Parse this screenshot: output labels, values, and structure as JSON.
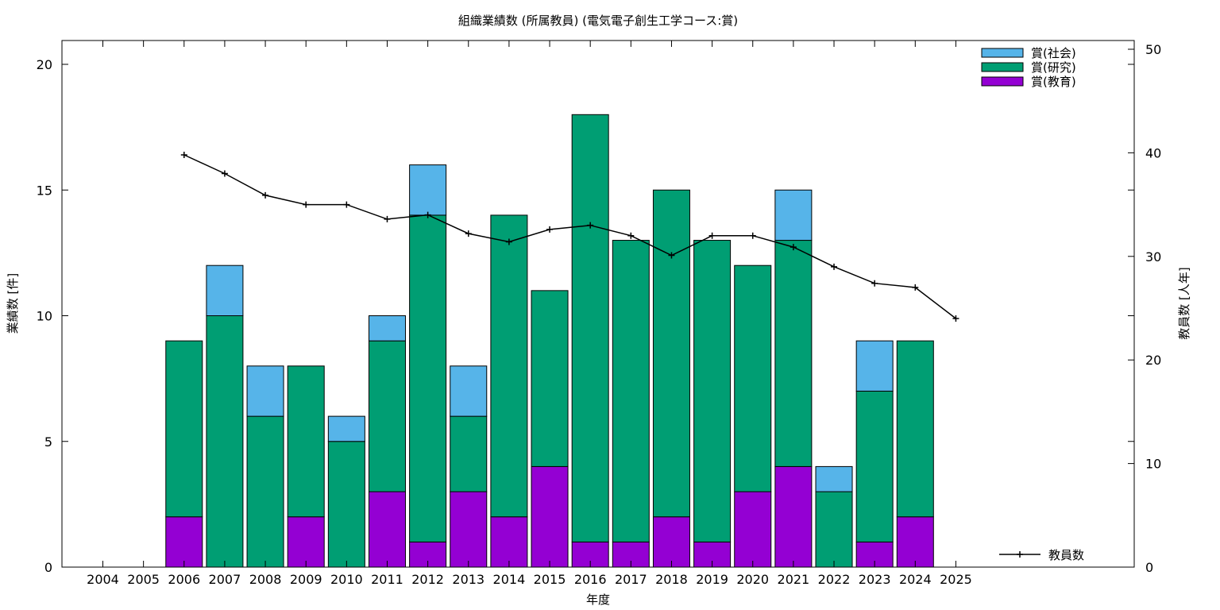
{
  "chart_data": {
    "type": "bar",
    "title": "組織業績数 (所属教員) (電気電子創生工学コース:賞)",
    "xlabel": "年度",
    "ylabel": "業績数 [件]",
    "y2label": "教員数 [人年]",
    "stacked": true,
    "categories": [
      "2004",
      "2005",
      "2006",
      "2007",
      "2008",
      "2009",
      "2010",
      "2011",
      "2012",
      "2013",
      "2014",
      "2015",
      "2016",
      "2017",
      "2018",
      "2019",
      "2020",
      "2021",
      "2022",
      "2023",
      "2024",
      "2025"
    ],
    "ylim": [
      0,
      20
    ],
    "yticks": [
      0,
      5,
      10,
      15,
      20
    ],
    "y2lim": [
      0,
      50
    ],
    "y2ticks": [
      0,
      10,
      20,
      30,
      40,
      50
    ],
    "series": [
      {
        "name": "賞(教育)",
        "color": "#9400d3",
        "axis": "left",
        "values": [
          0,
          0,
          2,
          0,
          0,
          2,
          0,
          3,
          1,
          3,
          2,
          4,
          1,
          1,
          2,
          1,
          3,
          4,
          0,
          1,
          2,
          0
        ]
      },
      {
        "name": "賞(研究)",
        "color": "#009e73",
        "axis": "left",
        "values": [
          0,
          0,
          7,
          10,
          6,
          6,
          5,
          6,
          13,
          3,
          12,
          7,
          17,
          12,
          13,
          12,
          9,
          9,
          3,
          6,
          7,
          0
        ]
      },
      {
        "name": "賞(社会)",
        "color": "#56b4e9",
        "axis": "left",
        "values": [
          0,
          0,
          0,
          2,
          2,
          0,
          1,
          1,
          2,
          2,
          0,
          0,
          0,
          0,
          0,
          0,
          0,
          2,
          1,
          2,
          0,
          0
        ]
      }
    ],
    "line_series": {
      "name": "教員数",
      "color": "#000000",
      "axis": "right",
      "categories": [
        "2006",
        "2007",
        "2008",
        "2009",
        "2010",
        "2011",
        "2012",
        "2013",
        "2014",
        "2015",
        "2016",
        "2017",
        "2018",
        "2019",
        "2020",
        "2021",
        "2022",
        "2023",
        "2024",
        "2025"
      ],
      "values": [
        39.8,
        38.0,
        35.9,
        35.0,
        35.0,
        33.6,
        34.0,
        32.2,
        31.4,
        32.6,
        33.0,
        32.0,
        30.1,
        32.0,
        32.0,
        30.9,
        29.0,
        27.4,
        27.0,
        24.0
      ]
    },
    "legend_top": [
      "賞(社会)",
      "賞(研究)",
      "賞(教育)"
    ],
    "legend_position": "top-right",
    "grid": false
  }
}
